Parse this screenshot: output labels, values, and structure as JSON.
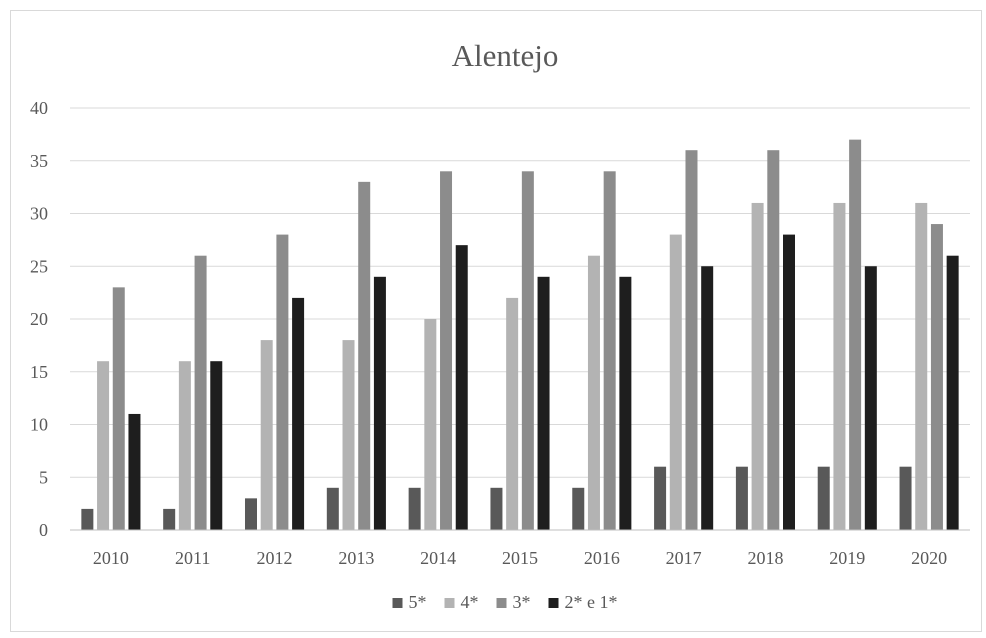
{
  "chart_data": {
    "type": "bar",
    "title": "Alentejo",
    "xlabel": "",
    "ylabel": "",
    "ylim": [
      0,
      40
    ],
    "yticks": [
      "0",
      "5",
      "10",
      "15",
      "20",
      "25",
      "30",
      "35",
      "40"
    ],
    "grid": true,
    "legend_position": "bottom",
    "categories": [
      "2010",
      "2011",
      "2012",
      "2013",
      "2014",
      "2015",
      "2016",
      "2017",
      "2018",
      "2019",
      "2020"
    ],
    "series": [
      {
        "name": "5*",
        "color": "#595959",
        "values": [
          2,
          2,
          3,
          4,
          4,
          4,
          4,
          6,
          6,
          6,
          6
        ]
      },
      {
        "name": "4*",
        "color": "#b3b3b3",
        "values": [
          16,
          16,
          18,
          18,
          20,
          22,
          26,
          28,
          31,
          31,
          31
        ]
      },
      {
        "name": "3*",
        "color": "#8c8c8c",
        "values": [
          23,
          26,
          28,
          33,
          34,
          34,
          34,
          36,
          36,
          37,
          29
        ]
      },
      {
        "name": "2* e 1*",
        "color": "#1e1e1e",
        "values": [
          11,
          16,
          22,
          24,
          27,
          24,
          24,
          25,
          28,
          25,
          26
        ]
      }
    ]
  }
}
